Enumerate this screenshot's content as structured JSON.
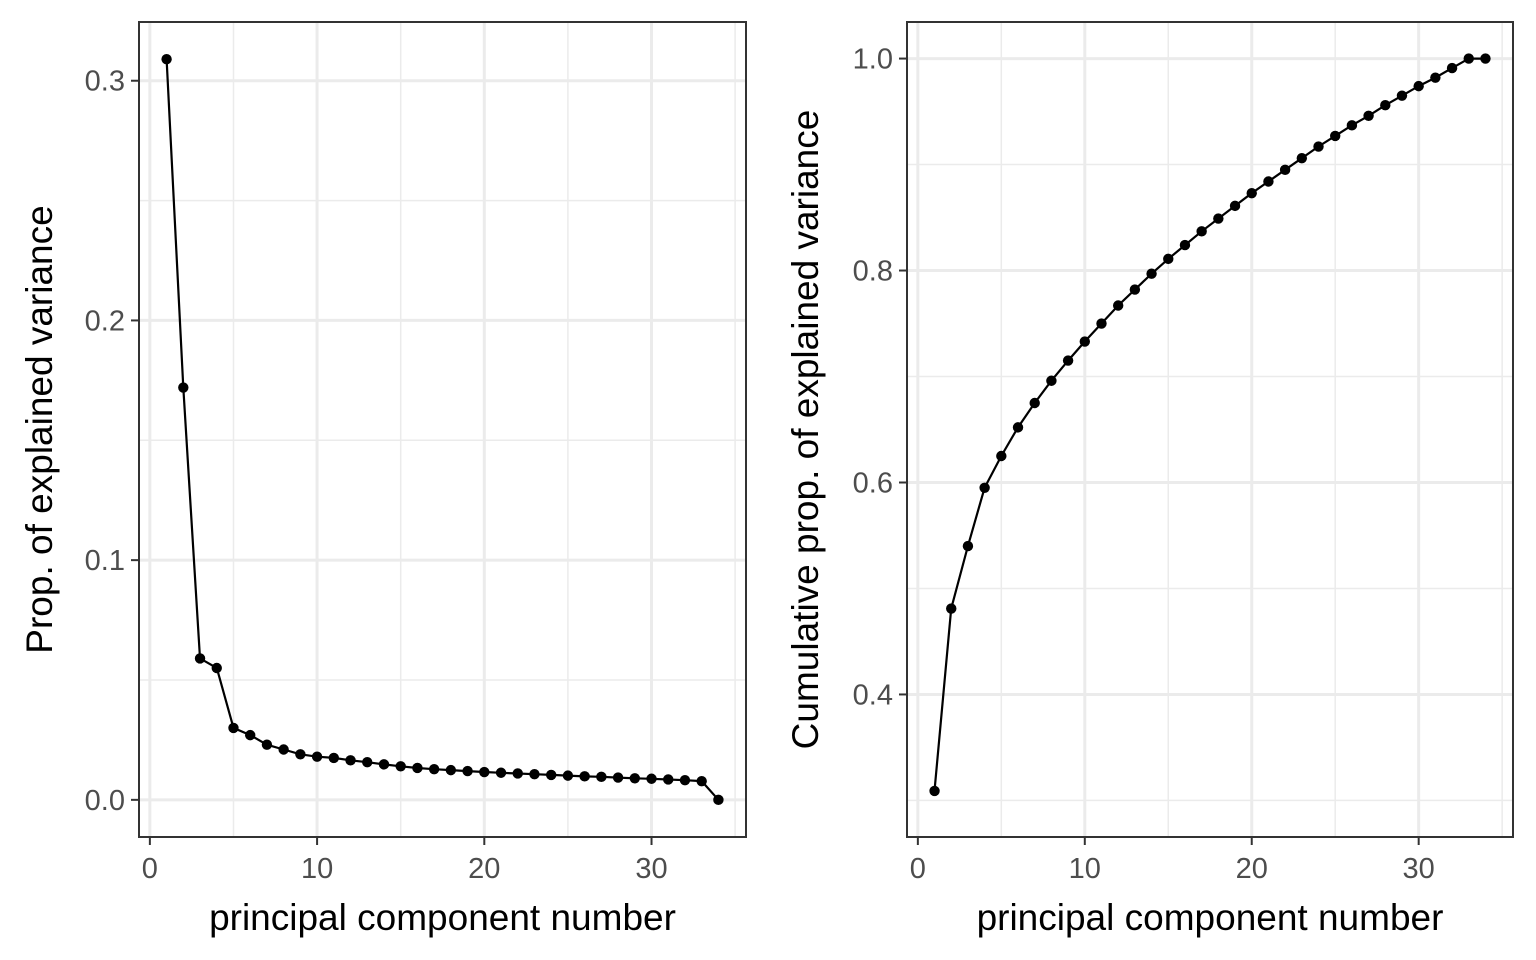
{
  "chart_data": [
    {
      "type": "line",
      "xlabel": "principal component number",
      "ylabel": "Prop. of explained variance",
      "xlim": [
        -0.65,
        35.65
      ],
      "ylim": [
        -0.0155,
        0.3245
      ],
      "x_ticks": [
        0,
        10,
        20,
        30
      ],
      "y_ticks": [
        0.0,
        0.1,
        0.2,
        0.3
      ],
      "x_tick_labels": [
        "0",
        "10",
        "20",
        "30"
      ],
      "y_tick_labels": [
        "0.0",
        "0.1",
        "0.2",
        "0.3"
      ],
      "grid": true,
      "series": [
        {
          "x": [
            1,
            2,
            3,
            4,
            5,
            6,
            7,
            8,
            9,
            10,
            11,
            12,
            13,
            14,
            15,
            16,
            17,
            18,
            19,
            20,
            21,
            22,
            23,
            24,
            25,
            26,
            27,
            28,
            29,
            30,
            31,
            32,
            33,
            34
          ],
          "values": [
            0.309,
            0.172,
            0.059,
            0.055,
            0.03,
            0.027,
            0.023,
            0.021,
            0.019,
            0.018,
            0.0175,
            0.0165,
            0.0157,
            0.0148,
            0.014,
            0.0133,
            0.0128,
            0.0124,
            0.012,
            0.0116,
            0.0113,
            0.011,
            0.0107,
            0.0104,
            0.0101,
            0.0098,
            0.0096,
            0.0093,
            0.009,
            0.0088,
            0.0085,
            0.0082,
            0.0078,
            0.0
          ]
        }
      ]
    },
    {
      "type": "line",
      "xlabel": "principal component number",
      "ylabel": "Cumulative prop. of explained variance",
      "xlim": [
        -0.65,
        35.65
      ],
      "ylim": [
        0.2655,
        1.0345
      ],
      "x_ticks": [
        0,
        10,
        20,
        30
      ],
      "y_ticks": [
        0.4,
        0.6,
        0.8,
        1.0
      ],
      "x_tick_labels": [
        "0",
        "10",
        "20",
        "30"
      ],
      "y_tick_labels": [
        "0.4",
        "0.6",
        "0.8",
        "1.0"
      ],
      "grid": true,
      "series": [
        {
          "x": [
            1,
            2,
            3,
            4,
            5,
            6,
            7,
            8,
            9,
            10,
            11,
            12,
            13,
            14,
            15,
            16,
            17,
            18,
            19,
            20,
            21,
            22,
            23,
            24,
            25,
            26,
            27,
            28,
            29,
            30,
            31,
            32,
            33,
            34
          ],
          "values": [
            0.309,
            0.481,
            0.54,
            0.595,
            0.625,
            0.652,
            0.675,
            0.696,
            0.715,
            0.733,
            0.75,
            0.767,
            0.782,
            0.797,
            0.811,
            0.824,
            0.837,
            0.849,
            0.861,
            0.873,
            0.884,
            0.895,
            0.906,
            0.917,
            0.927,
            0.937,
            0.946,
            0.956,
            0.965,
            0.974,
            0.982,
            0.991,
            1.0,
            1.0
          ]
        }
      ]
    }
  ]
}
